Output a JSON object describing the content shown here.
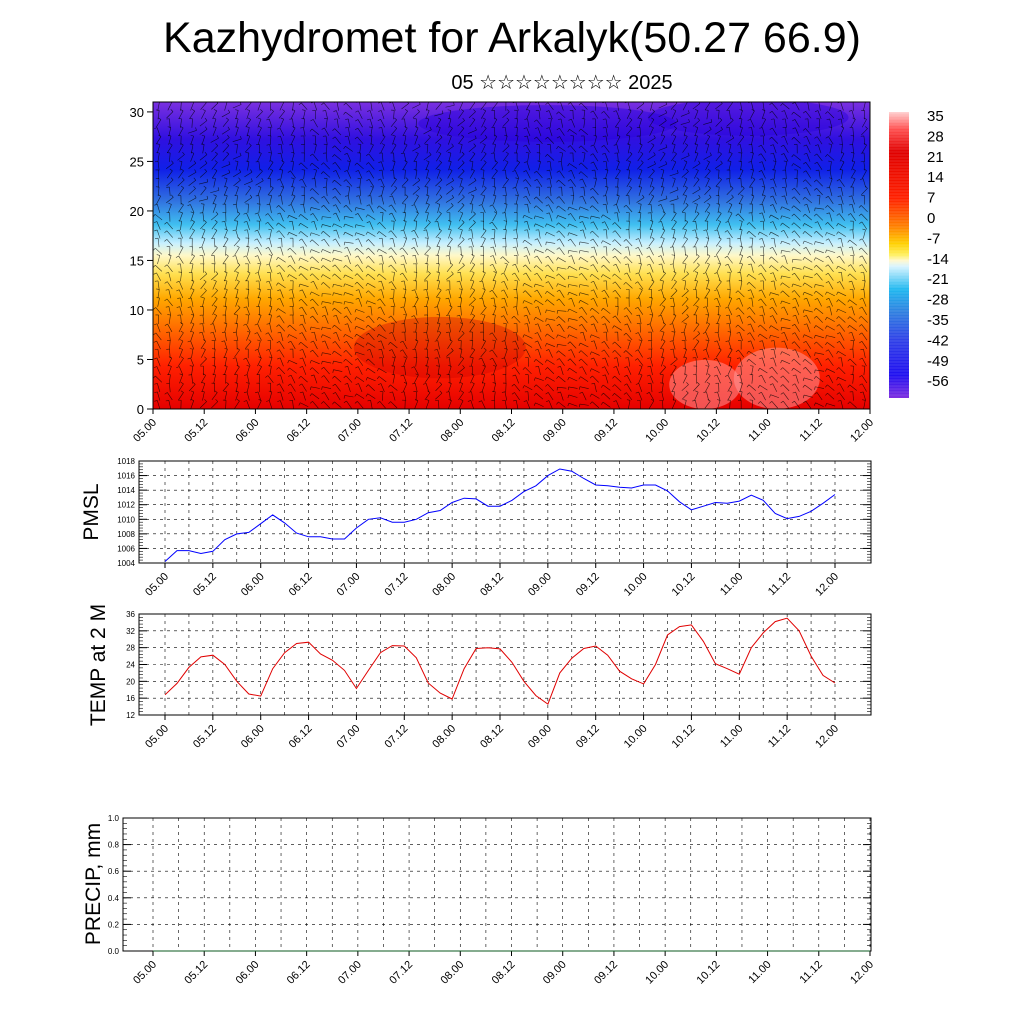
{
  "title": "Kazhydromet for Arkalyk(50.27 66.9)",
  "subtitle": "05 ☆☆☆☆☆☆☆☆ 2025",
  "colors": {
    "pmsl_line": "#0000ff",
    "temp_line": "#e00000",
    "precip_line": "#0b5a1f",
    "axis": "#000000"
  },
  "chart_data": [
    {
      "type": "heatmap",
      "title": "",
      "xlabel": "",
      "ylabel": "",
      "x_ticks": [
        "05.00",
        "05.12",
        "06.00",
        "06.12",
        "07.00",
        "07.12",
        "08.00",
        "08.12",
        "09.00",
        "09.12",
        "10.00",
        "10.12",
        "11.00",
        "11.12",
        "12.00"
      ],
      "y_ticks": [
        0,
        5,
        10,
        15,
        20,
        25,
        30
      ],
      "ylim": [
        0,
        31
      ],
      "colorbar_labels": [
        "35",
        "28",
        "21",
        "14",
        "7",
        "0",
        "-7",
        "-14",
        "-21",
        "-28",
        "-35",
        "-42",
        "-49",
        "-56"
      ],
      "overlay": "wind barbs",
      "description_note": ""
    },
    {
      "type": "line",
      "ylabel": "PMSL",
      "x_ticks": [
        "05.00",
        "05.12",
        "06.00",
        "06.12",
        "07.00",
        "07.12",
        "08.00",
        "08.12",
        "09.00",
        "09.12",
        "10.00",
        "10.12",
        "11.00",
        "11.12",
        "12.00"
      ],
      "y_ticks": [
        1004,
        1006,
        1008,
        1010,
        1012,
        1014,
        1016,
        1018
      ],
      "ylim": [
        1004,
        1018
      ],
      "series": [
        {
          "values": [
            1004.2,
            1005.7,
            1005.7,
            1005.3,
            1005.6,
            1007.2,
            1008.0,
            1008.2,
            1009.4,
            1010.6,
            1009.5,
            1008.1,
            1007.6,
            1007.6,
            1007.3,
            1007.3,
            1008.8,
            1010.0,
            1010.2,
            1009.6,
            1009.6,
            1010.0,
            1010.9,
            1011.2,
            1012.3,
            1012.9,
            1012.8,
            1011.8,
            1011.8,
            1012.6,
            1013.8,
            1014.6,
            1016.0,
            1016.9,
            1016.6,
            1015.6,
            1014.7,
            1014.6,
            1014.4,
            1014.3,
            1014.7,
            1014.7,
            1013.9,
            1012.4,
            1011.3,
            1011.8,
            1012.3,
            1012.2,
            1012.5,
            1013.3,
            1012.6,
            1010.8,
            1010.1,
            1010.4,
            1011.1,
            1012.2,
            1013.4
          ]
        }
      ],
      "grid": true
    },
    {
      "type": "line",
      "ylabel": "TEMP at 2 M",
      "x_ticks": [
        "05.00",
        "05.12",
        "06.00",
        "06.12",
        "07.00",
        "07.12",
        "08.00",
        "08.12",
        "09.00",
        "09.12",
        "10.00",
        "10.12",
        "11.00",
        "11.12",
        "12.00"
      ],
      "y_ticks": [
        12,
        16,
        20,
        24,
        28,
        32,
        36
      ],
      "ylim": [
        12,
        36
      ],
      "series": [
        {
          "values": [
            16.8,
            19.5,
            23.3,
            25.8,
            26.2,
            24.0,
            20.0,
            17.0,
            16.5,
            23.0,
            26.8,
            29.0,
            29.3,
            26.5,
            25.0,
            22.6,
            18.3,
            22.6,
            26.8,
            28.5,
            28.4,
            25.6,
            19.6,
            17.2,
            15.8,
            23.0,
            27.8,
            28.0,
            27.7,
            24.5,
            20.0,
            16.6,
            14.6,
            22.0,
            25.5,
            27.8,
            28.4,
            26.2,
            22.4,
            20.6,
            19.4,
            24.0,
            31.0,
            33.0,
            33.4,
            29.5,
            24.2,
            23.0,
            21.7,
            28.0,
            31.5,
            34.2,
            35.0,
            32.0,
            26.0,
            21.4,
            19.6
          ]
        }
      ],
      "grid": true
    },
    {
      "type": "line",
      "ylabel": "PRECIP, mm",
      "x_ticks": [
        "05.00",
        "05.12",
        "06.00",
        "06.12",
        "07.00",
        "07.12",
        "08.00",
        "08.12",
        "09.00",
        "09.12",
        "10.00",
        "10.12",
        "11.00",
        "11.12",
        "12.00"
      ],
      "y_ticks": [
        "0.0",
        "0.2",
        "0.4",
        "0.6",
        "0.8",
        "1.0"
      ],
      "ylim": [
        0,
        1.0
      ],
      "series": [
        {
          "values": [
            0,
            0,
            0,
            0,
            0,
            0,
            0,
            0,
            0,
            0,
            0,
            0,
            0,
            0,
            0,
            0,
            0,
            0,
            0,
            0,
            0,
            0,
            0,
            0,
            0,
            0,
            0,
            0,
            0,
            0,
            0,
            0,
            0,
            0,
            0,
            0,
            0,
            0,
            0,
            0,
            0,
            0,
            0,
            0,
            0,
            0,
            0,
            0,
            0,
            0,
            0,
            0,
            0,
            0,
            0,
            0,
            0
          ]
        }
      ],
      "grid": true
    }
  ]
}
